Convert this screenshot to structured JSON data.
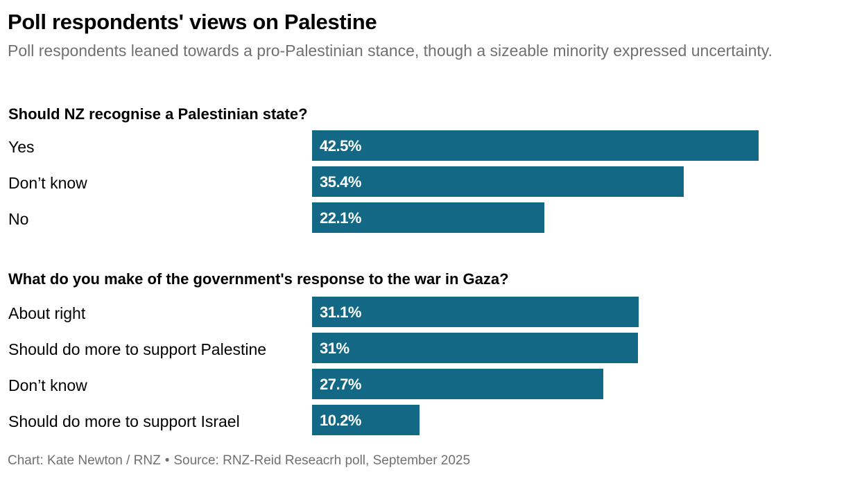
{
  "title": "Poll respondents' views on Palestine",
  "subtitle": "Poll respondents leaned towards a pro-Palestinian stance, though a sizeable minority expressed uncertainty.",
  "footer": {
    "credit": "Chart: Kate Newton / RNZ",
    "separator": "•",
    "source": "Source: RNZ-Reid Reseacrh poll, September 2025"
  },
  "colors": {
    "bar": "#136985"
  },
  "chart_data": [
    {
      "type": "bar",
      "orientation": "horizontal",
      "title": "Should NZ recognise a Palestinian state?",
      "categories": [
        "Yes",
        "Don’t know",
        "No"
      ],
      "values": [
        42.5,
        35.4,
        22.1
      ],
      "value_labels": [
        "42.5%",
        "35.4%",
        "22.1%"
      ],
      "unit": "%",
      "xlim": [
        0,
        42.5
      ]
    },
    {
      "type": "bar",
      "orientation": "horizontal",
      "title": "What do you make of the government's response to the war in Gaza?",
      "categories": [
        "About right",
        "Should do more to support Palestine",
        "Don’t know",
        "Should do more to support Israel"
      ],
      "values": [
        31.1,
        31,
        27.7,
        10.2
      ],
      "value_labels": [
        "31.1%",
        "31%",
        "27.7%",
        "10.2%"
      ],
      "unit": "%",
      "xlim": [
        0,
        42.5
      ]
    }
  ]
}
